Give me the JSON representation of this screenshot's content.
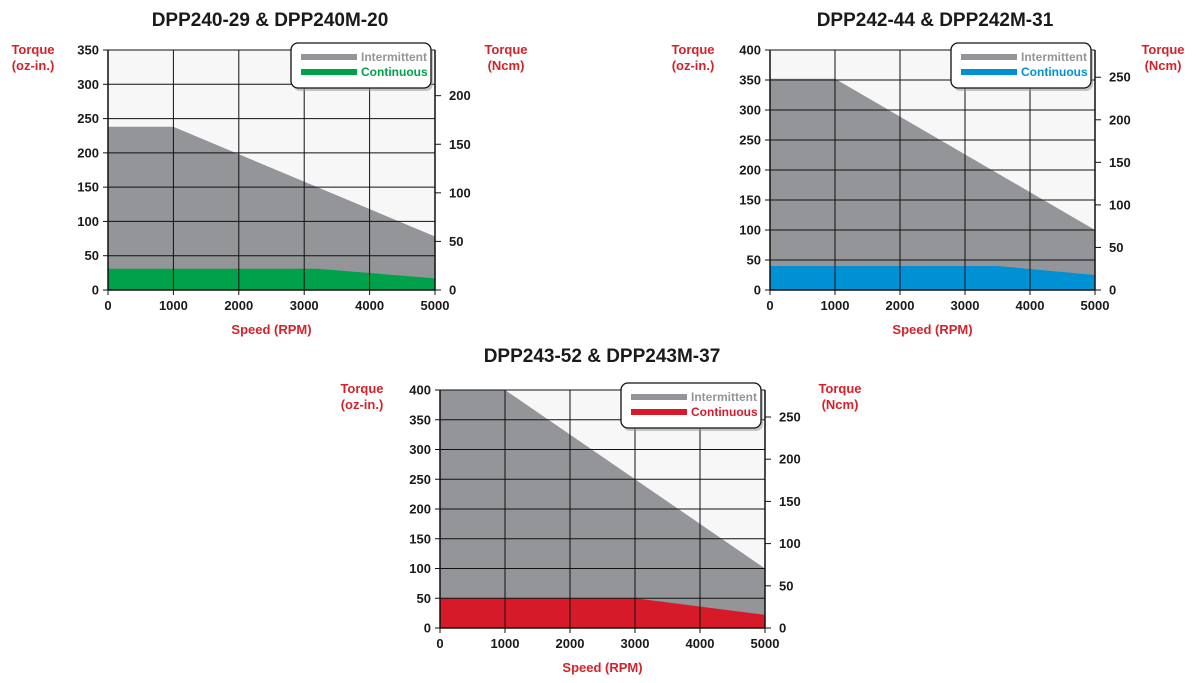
{
  "chart_data": [
    {
      "type": "area",
      "title": "DPP240-29 & DPP240M-20",
      "xlabel": "Speed (RPM)",
      "ylabel_left": "Torque\n(oz-in.)",
      "ylabel_right": "Torque\n(Ncm)",
      "xlim": [
        0,
        5000
      ],
      "ylim_left": [
        0,
        350
      ],
      "ylim_right": [
        0,
        247
      ],
      "x_ticks": [
        0,
        1000,
        2000,
        3000,
        4000,
        5000
      ],
      "y_ticks_left": [
        0,
        50,
        100,
        150,
        200,
        250,
        300,
        350
      ],
      "y_ticks_right": [
        0,
        50,
        100,
        150,
        200
      ],
      "grid": true,
      "legend_position": "top-right",
      "series": [
        {
          "name": "Intermittent",
          "color": "#939598",
          "x": [
            0,
            1000,
            5000
          ],
          "y": [
            238,
            238,
            78
          ]
        },
        {
          "name": "Continuous",
          "color": "#00a14b",
          "x": [
            0,
            3200,
            5000
          ],
          "y": [
            31,
            31,
            17
          ]
        }
      ]
    },
    {
      "type": "area",
      "title": "DPP242-44 & DPP242M-31",
      "xlabel": "Speed (RPM)",
      "ylabel_left": "Torque\n(oz-in.)",
      "ylabel_right": "Torque\n(Ncm)",
      "xlim": [
        0,
        5000
      ],
      "ylim_left": [
        0,
        400
      ],
      "ylim_right": [
        0,
        282
      ],
      "x_ticks": [
        0,
        1000,
        2000,
        3000,
        4000,
        5000
      ],
      "y_ticks_left": [
        0,
        50,
        100,
        150,
        200,
        250,
        300,
        350,
        400
      ],
      "y_ticks_right": [
        0,
        50,
        100,
        150,
        200,
        250
      ],
      "grid": true,
      "legend_position": "top-right",
      "series": [
        {
          "name": "Intermittent",
          "color": "#939598",
          "x": [
            0,
            1000,
            5000
          ],
          "y": [
            352,
            352,
            100
          ]
        },
        {
          "name": "Continuous",
          "color": "#0091d4",
          "x": [
            0,
            3500,
            5000
          ],
          "y": [
            40,
            40,
            25
          ]
        }
      ]
    },
    {
      "type": "area",
      "title": "DPP243-52 & DPP243M-37",
      "xlabel": "Speed (RPM)",
      "ylabel_left": "Torque\n(oz-in.)",
      "ylabel_right": "Torque\n(Ncm)",
      "xlim": [
        0,
        5000
      ],
      "ylim_left": [
        0,
        400
      ],
      "ylim_right": [
        0,
        282
      ],
      "x_ticks": [
        0,
        1000,
        2000,
        3000,
        4000,
        5000
      ],
      "y_ticks_left": [
        0,
        50,
        100,
        150,
        200,
        250,
        300,
        350,
        400
      ],
      "y_ticks_right": [
        0,
        50,
        100,
        150,
        200,
        250
      ],
      "grid": true,
      "legend_position": "top-right",
      "series": [
        {
          "name": "Intermittent",
          "color": "#939598",
          "x": [
            0,
            1000,
            5000
          ],
          "y": [
            400,
            400,
            100
          ]
        },
        {
          "name": "Continuous",
          "color": "#d71a2a",
          "x": [
            0,
            3000,
            5000
          ],
          "y": [
            50,
            50,
            22
          ]
        }
      ]
    }
  ]
}
